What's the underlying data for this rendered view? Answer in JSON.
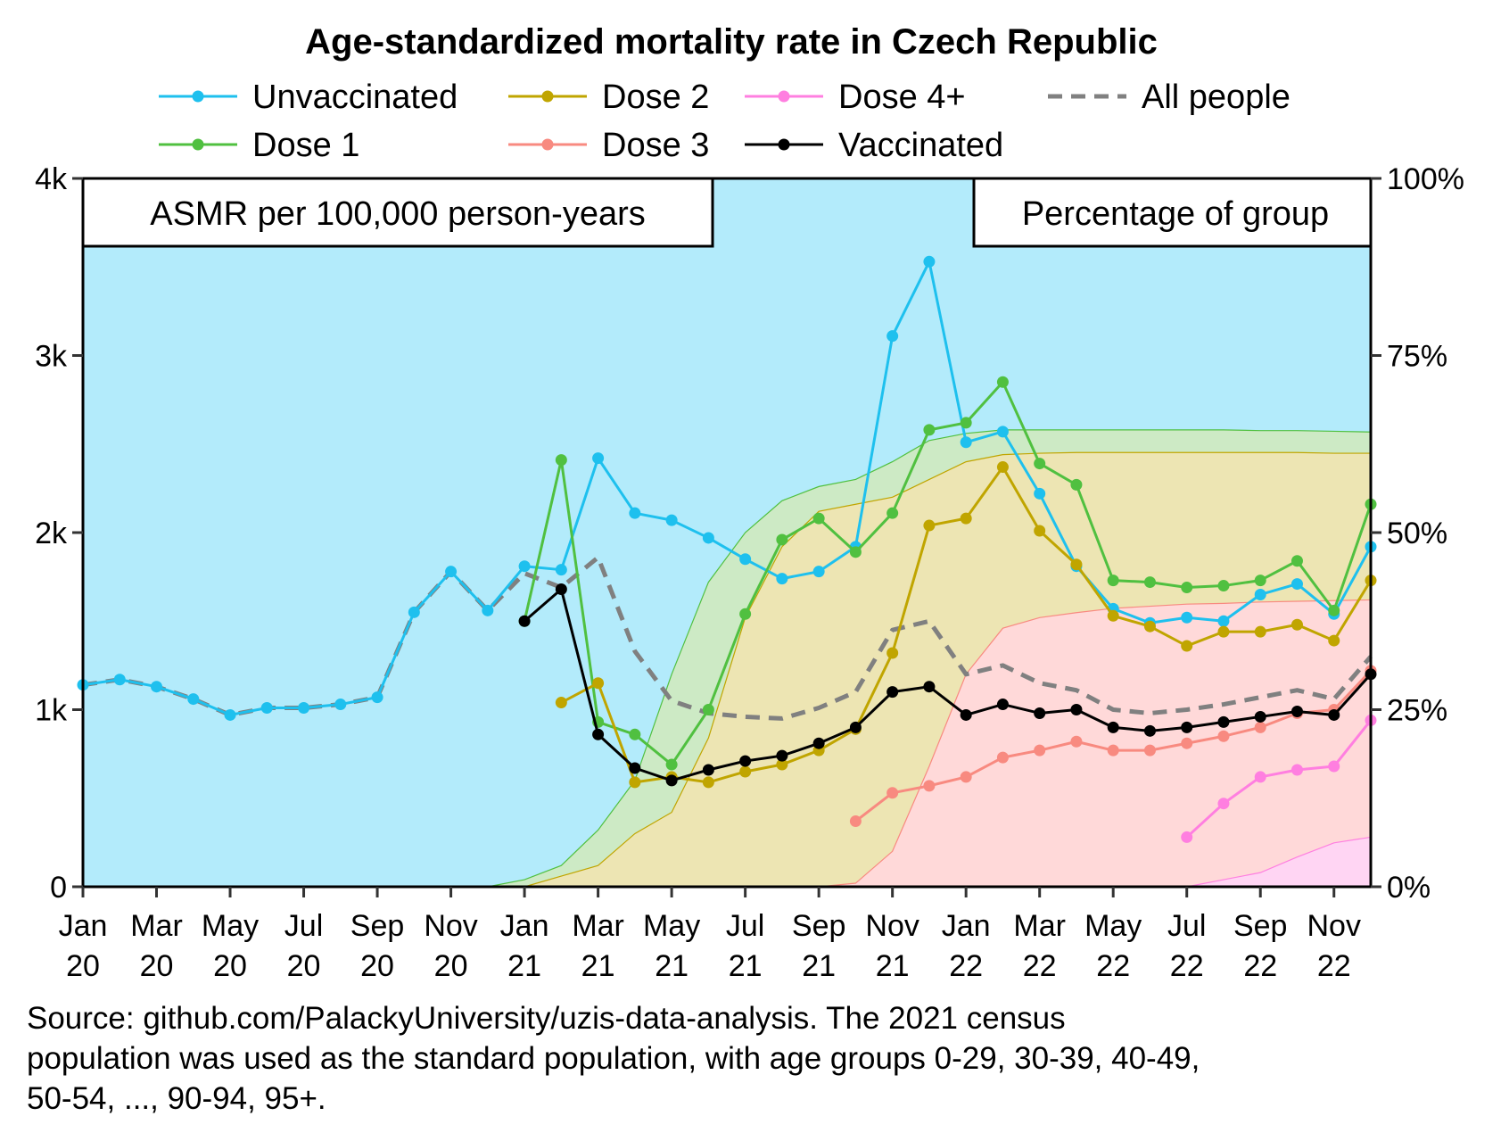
{
  "chart_data": {
    "type": "line",
    "title": "Age-standardized mortality rate in Czech Republic",
    "left_axis_label": "ASMR per 100,000 person-years",
    "right_axis_label": "Percentage of group",
    "ylim": [
      0,
      4000
    ],
    "y2lim": [
      0,
      100
    ],
    "yticks": [
      "0",
      "1k",
      "2k",
      "3k",
      "4k"
    ],
    "y2ticks": [
      "0%",
      "25%",
      "50%",
      "75%",
      "100%"
    ],
    "xticks": [
      {
        "m": "Jan",
        "y": "20"
      },
      {
        "m": "Mar",
        "y": "20"
      },
      {
        "m": "May",
        "y": "20"
      },
      {
        "m": "Jul",
        "y": "20"
      },
      {
        "m": "Sep",
        "y": "20"
      },
      {
        "m": "Nov",
        "y": "20"
      },
      {
        "m": "Jan",
        "y": "21"
      },
      {
        "m": "Mar",
        "y": "21"
      },
      {
        "m": "May",
        "y": "21"
      },
      {
        "m": "Jul",
        "y": "21"
      },
      {
        "m": "Sep",
        "y": "21"
      },
      {
        "m": "Nov",
        "y": "21"
      },
      {
        "m": "Jan",
        "y": "22"
      },
      {
        "m": "Mar",
        "y": "22"
      },
      {
        "m": "May",
        "y": "22"
      },
      {
        "m": "Jul",
        "y": "22"
      },
      {
        "m": "Sep",
        "y": "22"
      },
      {
        "m": "Nov",
        "y": "22"
      }
    ],
    "x_start": "2020-01",
    "series": [
      {
        "name": "Unvaccinated",
        "color": "#1ec0ee",
        "start": 0,
        "values": [
          1140,
          1170,
          1130,
          1060,
          970,
          1010,
          1010,
          1030,
          1070,
          1550,
          1780,
          1560,
          1810,
          1790,
          2420,
          2110,
          2070,
          1970,
          1850,
          1740,
          1780,
          1920,
          3110,
          3530,
          2510,
          2570,
          2220,
          1810,
          1570,
          1490,
          1520,
          1500,
          1650,
          1710,
          1540,
          1920
        ]
      },
      {
        "name": "Dose 1",
        "color": "#50c040",
        "start": 12,
        "values": [
          1500,
          2410,
          930,
          860,
          690,
          1000,
          1540,
          1960,
          2080,
          1890,
          2110,
          2580,
          2620,
          2850,
          2390,
          2270,
          1730,
          1720,
          1690,
          1700,
          1730,
          1840,
          1560,
          2160
        ]
      },
      {
        "name": "Dose 2",
        "color": "#c0a500",
        "start": 13,
        "values": [
          1040,
          1150,
          590,
          620,
          590,
          650,
          690,
          770,
          890,
          1320,
          2040,
          2080,
          2370,
          2010,
          1820,
          1530,
          1470,
          1360,
          1440,
          1440,
          1480,
          1390,
          1730
        ]
      },
      {
        "name": "Dose 3",
        "color": "#f88a80",
        "start": 21,
        "values": [
          370,
          530,
          570,
          620,
          730,
          770,
          820,
          770,
          770,
          810,
          850,
          900,
          980,
          1000,
          1220
        ]
      },
      {
        "name": "Dose 4+",
        "color": "#ff7fe0",
        "start": 30,
        "values": [
          280,
          470,
          620,
          660,
          680,
          940
        ]
      },
      {
        "name": "Vaccinated",
        "color": "#000000",
        "start": 12,
        "values": [
          1500,
          1680,
          860,
          670,
          600,
          660,
          710,
          740,
          810,
          900,
          1100,
          1130,
          970,
          1030,
          980,
          1000,
          900,
          880,
          900,
          930,
          960,
          990,
          970,
          1200
        ]
      },
      {
        "name": "All people",
        "color": "#808080",
        "dashed": true,
        "start": 0,
        "values": [
          1140,
          1170,
          1130,
          1060,
          970,
          1010,
          1010,
          1030,
          1070,
          1550,
          1780,
          1560,
          1770,
          1690,
          1860,
          1330,
          1050,
          980,
          960,
          950,
          1010,
          1100,
          1450,
          1500,
          1200,
          1250,
          1150,
          1110,
          1000,
          980,
          1000,
          1030,
          1070,
          1110,
          1060,
          1300
        ]
      }
    ],
    "percentage_areas": [
      {
        "name": "Dose 1+",
        "fill": "#cdeac5",
        "stroke": "#50c040",
        "start": 11,
        "values": [
          0,
          1,
          3,
          8,
          15,
          30,
          43,
          50,
          54.5,
          56.5,
          57.5,
          60,
          63,
          64,
          64.5,
          64.5,
          64.5,
          64.5,
          64.5,
          64.5,
          64.5,
          64.4,
          64.4,
          64.3,
          64.2
        ]
      },
      {
        "name": "Dose 2+",
        "fill": "#ede5b3",
        "stroke": "#c0a500",
        "start": 12,
        "values": [
          0,
          1.5,
          3,
          7.5,
          10.5,
          21,
          38,
          48,
          53,
          54,
          55,
          57.5,
          60,
          61,
          61.2,
          61.3,
          61.3,
          61.3,
          61.3,
          61.3,
          61.3,
          61.3,
          61.2,
          61.2
        ]
      },
      {
        "name": "Dose 3+",
        "fill": "#ffd9d9",
        "stroke": "#f88a80",
        "start": 20,
        "values": [
          0,
          0.5,
          5,
          17,
          30,
          36.5,
          38,
          38.7,
          39.3,
          39.6,
          39.9,
          40,
          40.2,
          40.3,
          40.4,
          40.5
        ]
      },
      {
        "name": "Dose 4+",
        "fill": "#ffd5f3",
        "stroke": "#ff7fe0",
        "start": 30,
        "values": [
          0,
          1,
          2,
          4.2,
          6.2,
          7
        ]
      }
    ],
    "legend": [
      "Unvaccinated",
      "Dose 2",
      "Dose 4+",
      "All people",
      "Dose 1",
      "Dose 3",
      "Vaccinated"
    ],
    "legend_placement": "top",
    "source_lines": [
      "Source: github.com/PalackyUniversity/uzis-data-analysis. The 2021 census",
      "population was used as the standard population, with age groups 0-29, 30-39, 40-49,",
      "50-54, ..., 90-94, 95+."
    ]
  }
}
